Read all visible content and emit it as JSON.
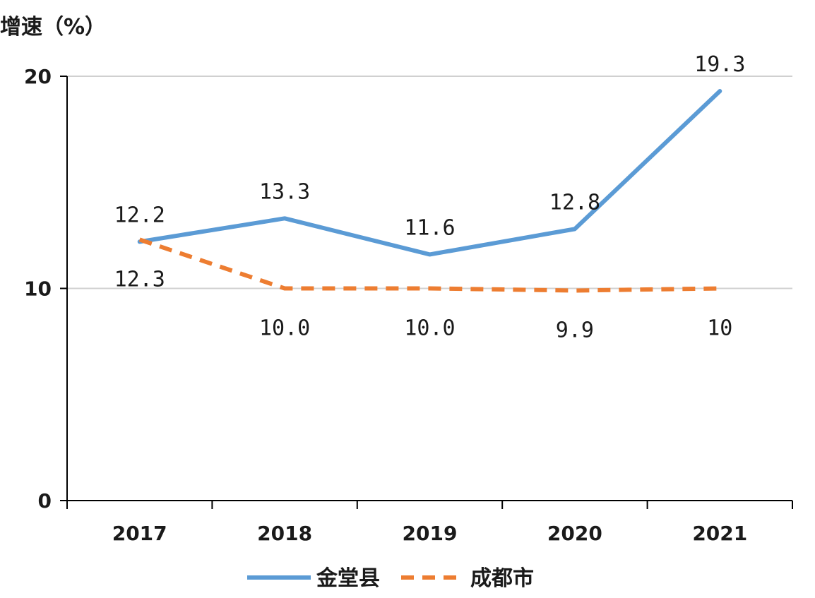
{
  "chart_data": {
    "type": "line",
    "ylabel": "增速（%）",
    "xlabel": "",
    "categories": [
      "2017",
      "2018",
      "2019",
      "2020",
      "2021"
    ],
    "ylim": [
      0,
      20
    ],
    "yticks": [
      0,
      10,
      20
    ],
    "grid": true,
    "legend_position": "bottom",
    "series": [
      {
        "name": "金堂县",
        "values": [
          12.2,
          13.3,
          11.6,
          12.8,
          19.3
        ],
        "labels": [
          "12.2",
          "13.3",
          "11.6",
          "12.8",
          "19.3"
        ],
        "color": "#5b9bd5",
        "style": "solid"
      },
      {
        "name": "成都市",
        "values": [
          12.3,
          10.0,
          10.0,
          9.9,
          10
        ],
        "labels": [
          "12.3",
          "10.0",
          "10.0",
          "9.9",
          "10"
        ],
        "color": "#ed7d31",
        "style": "dashed"
      }
    ]
  }
}
